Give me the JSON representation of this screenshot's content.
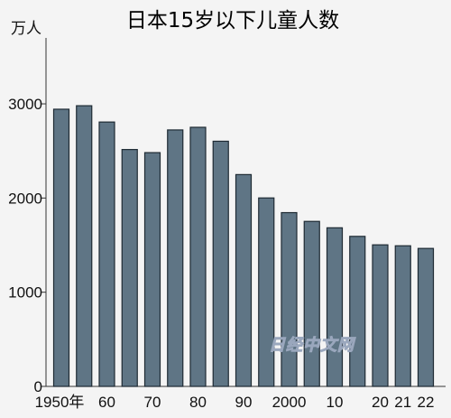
{
  "chart_data": {
    "type": "bar",
    "title": "日本15岁以下儿童人数",
    "ylabel": "万人",
    "xlabel": "",
    "ylim": [
      0,
      3700
    ],
    "yticks": [
      0,
      1000,
      2000,
      3000
    ],
    "categories": [
      "1950年",
      "",
      "60",
      "",
      "70",
      "",
      "80",
      "",
      "90",
      "",
      "2000",
      "",
      "10",
      "",
      "20",
      "21",
      "22"
    ],
    "values": [
      2943,
      2980,
      2807,
      2515,
      2482,
      2723,
      2751,
      2603,
      2249,
      2001,
      1845,
      1752,
      1684,
      1593,
      1503,
      1493,
      1465
    ],
    "bar_color": "#5f7585",
    "grid": false,
    "legend": "none"
  },
  "watermark": "日经中文网"
}
